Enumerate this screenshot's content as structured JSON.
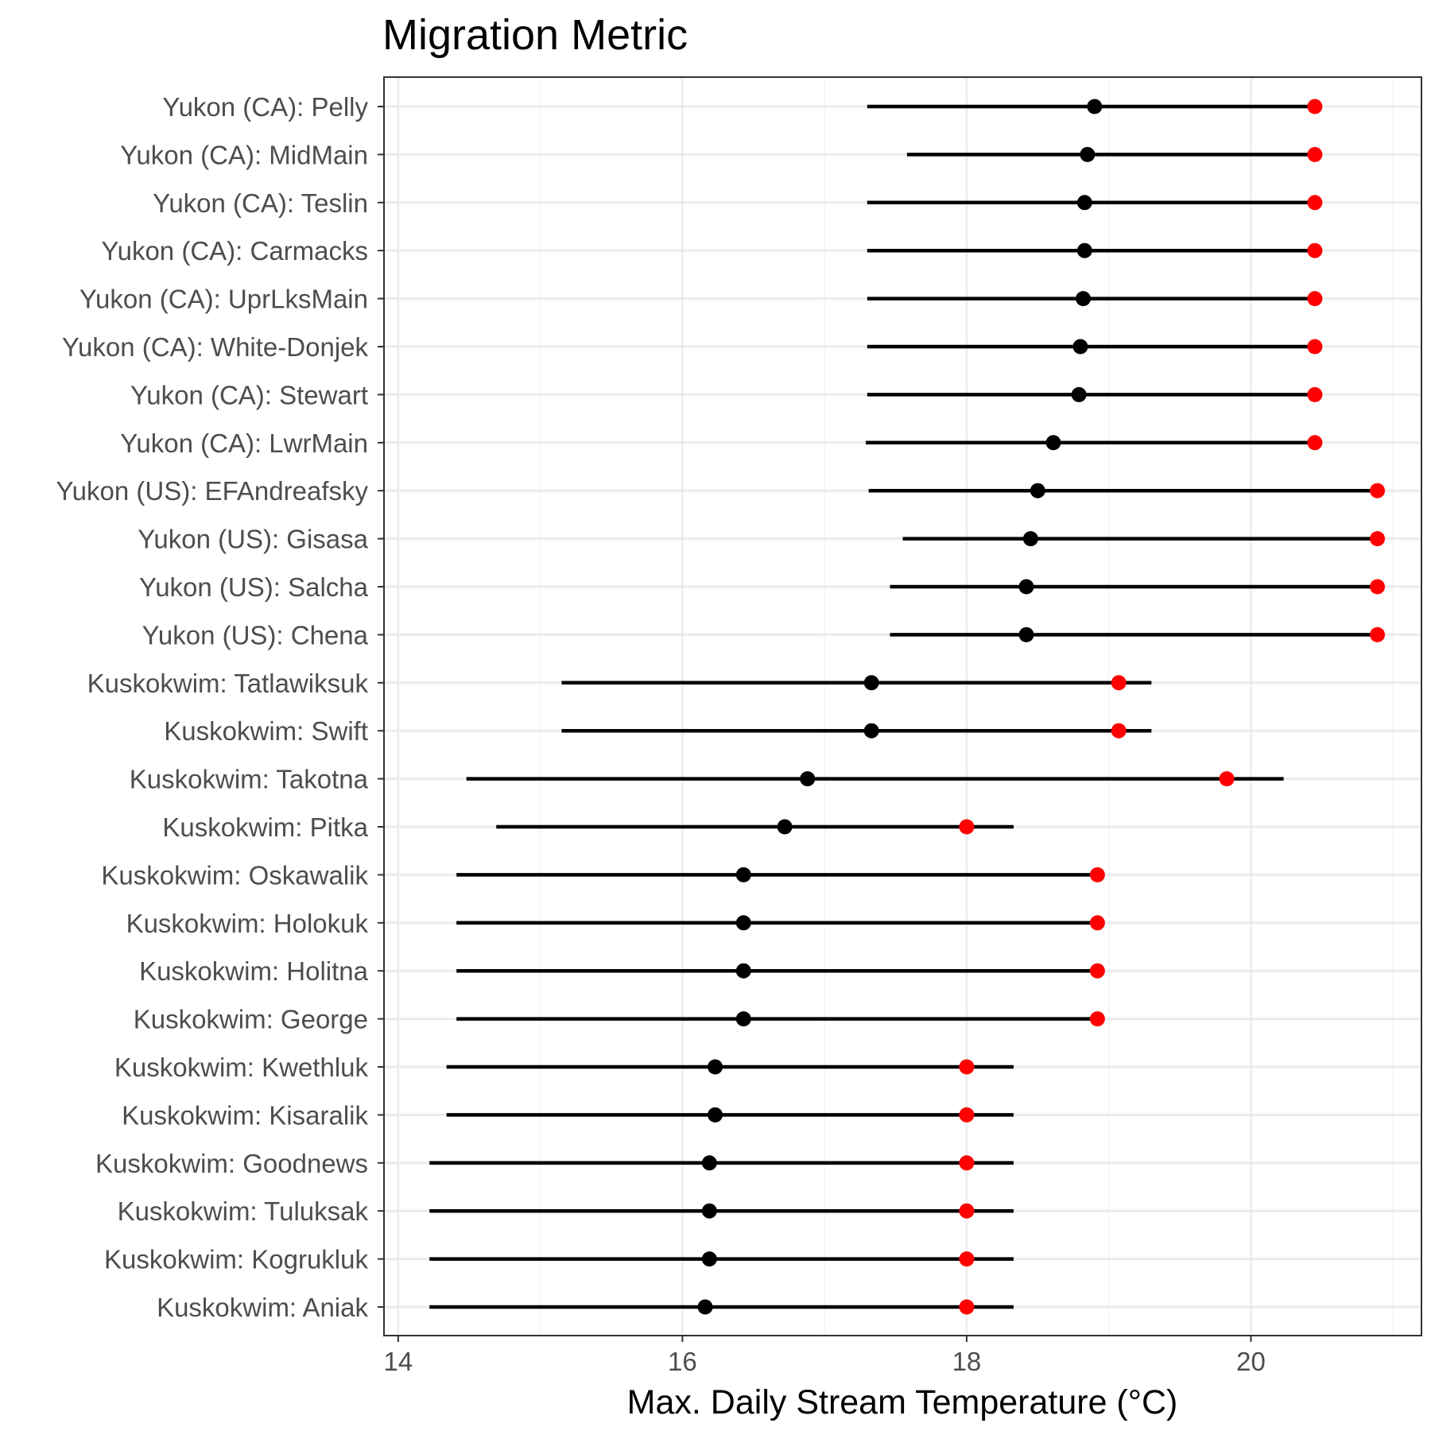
{
  "chart_data": {
    "type": "dot-range",
    "title": "Migration Metric",
    "xlabel": "Max. Daily Stream Temperature (°C)",
    "ylabel": "",
    "xlim": [
      13.9,
      21.2
    ],
    "x_ticks": [
      14,
      16,
      18,
      20
    ],
    "grid": true,
    "colors": {
      "range": "#000000",
      "median_point": "#000000",
      "threshold_point": "#ff0000",
      "panel_border": "#333333",
      "grid": "#ebebeb"
    },
    "rows": [
      {
        "label": "Yukon (CA): Pelly",
        "low": 17.3,
        "high": 20.45,
        "median": 18.9,
        "threshold": 20.45
      },
      {
        "label": "Yukon (CA): MidMain",
        "low": 17.58,
        "high": 20.45,
        "median": 18.85,
        "threshold": 20.45
      },
      {
        "label": "Yukon (CA): Teslin",
        "low": 17.3,
        "high": 20.45,
        "median": 18.83,
        "threshold": 20.45
      },
      {
        "label": "Yukon (CA): Carmacks",
        "low": 17.3,
        "high": 20.45,
        "median": 18.83,
        "threshold": 20.45
      },
      {
        "label": "Yukon (CA): UprLksMain",
        "low": 17.3,
        "high": 20.45,
        "median": 18.82,
        "threshold": 20.45
      },
      {
        "label": "Yukon (CA): White-Donjek",
        "low": 17.3,
        "high": 20.45,
        "median": 18.8,
        "threshold": 20.45
      },
      {
        "label": "Yukon (CA): Stewart",
        "low": 17.3,
        "high": 20.45,
        "median": 18.79,
        "threshold": 20.45
      },
      {
        "label": "Yukon (CA): LwrMain",
        "low": 17.29,
        "high": 20.45,
        "median": 18.61,
        "threshold": 20.45
      },
      {
        "label": "Yukon (US): EFAndreafsky",
        "low": 17.31,
        "high": 20.89,
        "median": 18.5,
        "threshold": 20.89
      },
      {
        "label": "Yukon (US): Gisasa",
        "low": 17.55,
        "high": 20.89,
        "median": 18.45,
        "threshold": 20.89
      },
      {
        "label": "Yukon (US): Salcha",
        "low": 17.46,
        "high": 20.89,
        "median": 18.42,
        "threshold": 20.89
      },
      {
        "label": "Yukon (US): Chena",
        "low": 17.46,
        "high": 20.89,
        "median": 18.42,
        "threshold": 20.89
      },
      {
        "label": "Kuskokwim: Tatlawiksuk",
        "low": 15.15,
        "high": 19.3,
        "median": 17.33,
        "threshold": 19.07
      },
      {
        "label": "Kuskokwim: Swift",
        "low": 15.15,
        "high": 19.3,
        "median": 17.33,
        "threshold": 19.07
      },
      {
        "label": "Kuskokwim: Takotna",
        "low": 14.48,
        "high": 20.23,
        "median": 16.88,
        "threshold": 19.83
      },
      {
        "label": "Kuskokwim: Pitka",
        "low": 14.69,
        "high": 18.33,
        "median": 16.72,
        "threshold": 18.0
      },
      {
        "label": "Kuskokwim: Oskawalik",
        "low": 14.41,
        "high": 18.92,
        "median": 16.43,
        "threshold": 18.92
      },
      {
        "label": "Kuskokwim: Holokuk",
        "low": 14.41,
        "high": 18.92,
        "median": 16.43,
        "threshold": 18.92
      },
      {
        "label": "Kuskokwim: Holitna",
        "low": 14.41,
        "high": 18.92,
        "median": 16.43,
        "threshold": 18.92
      },
      {
        "label": "Kuskokwim: George",
        "low": 14.41,
        "high": 18.92,
        "median": 16.43,
        "threshold": 18.92
      },
      {
        "label": "Kuskokwim: Kwethluk",
        "low": 14.34,
        "high": 18.33,
        "median": 16.23,
        "threshold": 18.0
      },
      {
        "label": "Kuskokwim: Kisaralik",
        "low": 14.34,
        "high": 18.33,
        "median": 16.23,
        "threshold": 18.0
      },
      {
        "label": "Kuskokwim: Goodnews",
        "low": 14.22,
        "high": 18.33,
        "median": 16.19,
        "threshold": 18.0
      },
      {
        "label": "Kuskokwim: Tuluksak",
        "low": 14.22,
        "high": 18.33,
        "median": 16.19,
        "threshold": 18.0
      },
      {
        "label": "Kuskokwim: Kogrukluk",
        "low": 14.22,
        "high": 18.33,
        "median": 16.19,
        "threshold": 18.0
      },
      {
        "label": "Kuskokwim: Aniak",
        "low": 14.22,
        "high": 18.33,
        "median": 16.16,
        "threshold": 18.0
      }
    ]
  }
}
